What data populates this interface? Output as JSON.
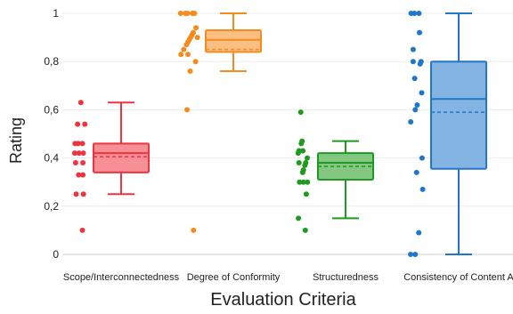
{
  "chart_data": {
    "type": "box",
    "xlabel": "Evaluation Criteria",
    "ylabel": "Rating",
    "ylim": [
      0,
      1
    ],
    "y_ticks": [
      "0",
      "0,2",
      "0,4",
      "0,6",
      "0,8",
      "1"
    ],
    "y_tick_values": [
      0,
      0.2,
      0.4,
      0.6,
      0.8,
      1
    ],
    "grid": true,
    "categories": [
      "Scope/Interconnectedness",
      "Degree of Conformity",
      "Structuredness",
      "Consistency of Content A"
    ],
    "series": [
      {
        "color": "#ef3340",
        "box": {
          "min": 0.25,
          "q1": 0.34,
          "median": 0.42,
          "q3": 0.46,
          "max": 0.63,
          "mean": 0.405
        },
        "points": [
          0.63,
          0.54,
          0.54,
          0.46,
          0.46,
          0.46,
          0.42,
          0.42,
          0.42,
          0.38,
          0.38,
          0.33,
          0.33,
          0.25,
          0.25,
          0.1
        ]
      },
      {
        "color": "#f78a1d",
        "box": {
          "min": 0.76,
          "q1": 0.84,
          "median": 0.89,
          "q3": 0.93,
          "max": 1.0,
          "mean": 0.85
        },
        "points": [
          1.0,
          1.0,
          1.0,
          1.0,
          1.0,
          0.94,
          0.92,
          0.91,
          0.9,
          0.9,
          0.89,
          0.88,
          0.87,
          0.85,
          0.83,
          0.83,
          0.8,
          0.76,
          0.6,
          0.1
        ]
      },
      {
        "color": "#1e9a1e",
        "box": {
          "min": 0.15,
          "q1": 0.31,
          "median": 0.38,
          "q3": 0.42,
          "max": 0.47,
          "mean": 0.365
        },
        "points": [
          0.59,
          0.47,
          0.46,
          0.43,
          0.43,
          0.42,
          0.4,
          0.38,
          0.38,
          0.37,
          0.35,
          0.34,
          0.3,
          0.3,
          0.3,
          0.25,
          0.15,
          0.1
        ]
      },
      {
        "color": "#1f77c9",
        "box": {
          "min": 0.0,
          "q1": 0.355,
          "median": 0.645,
          "q3": 0.8,
          "max": 1.0,
          "mean": 0.59
        },
        "points": [
          1.0,
          1.0,
          1.0,
          0.92,
          0.85,
          0.8,
          0.8,
          0.79,
          0.73,
          0.67,
          0.62,
          0.6,
          0.55,
          0.4,
          0.34,
          0.27,
          0.09,
          0.0,
          0.0
        ]
      }
    ]
  }
}
